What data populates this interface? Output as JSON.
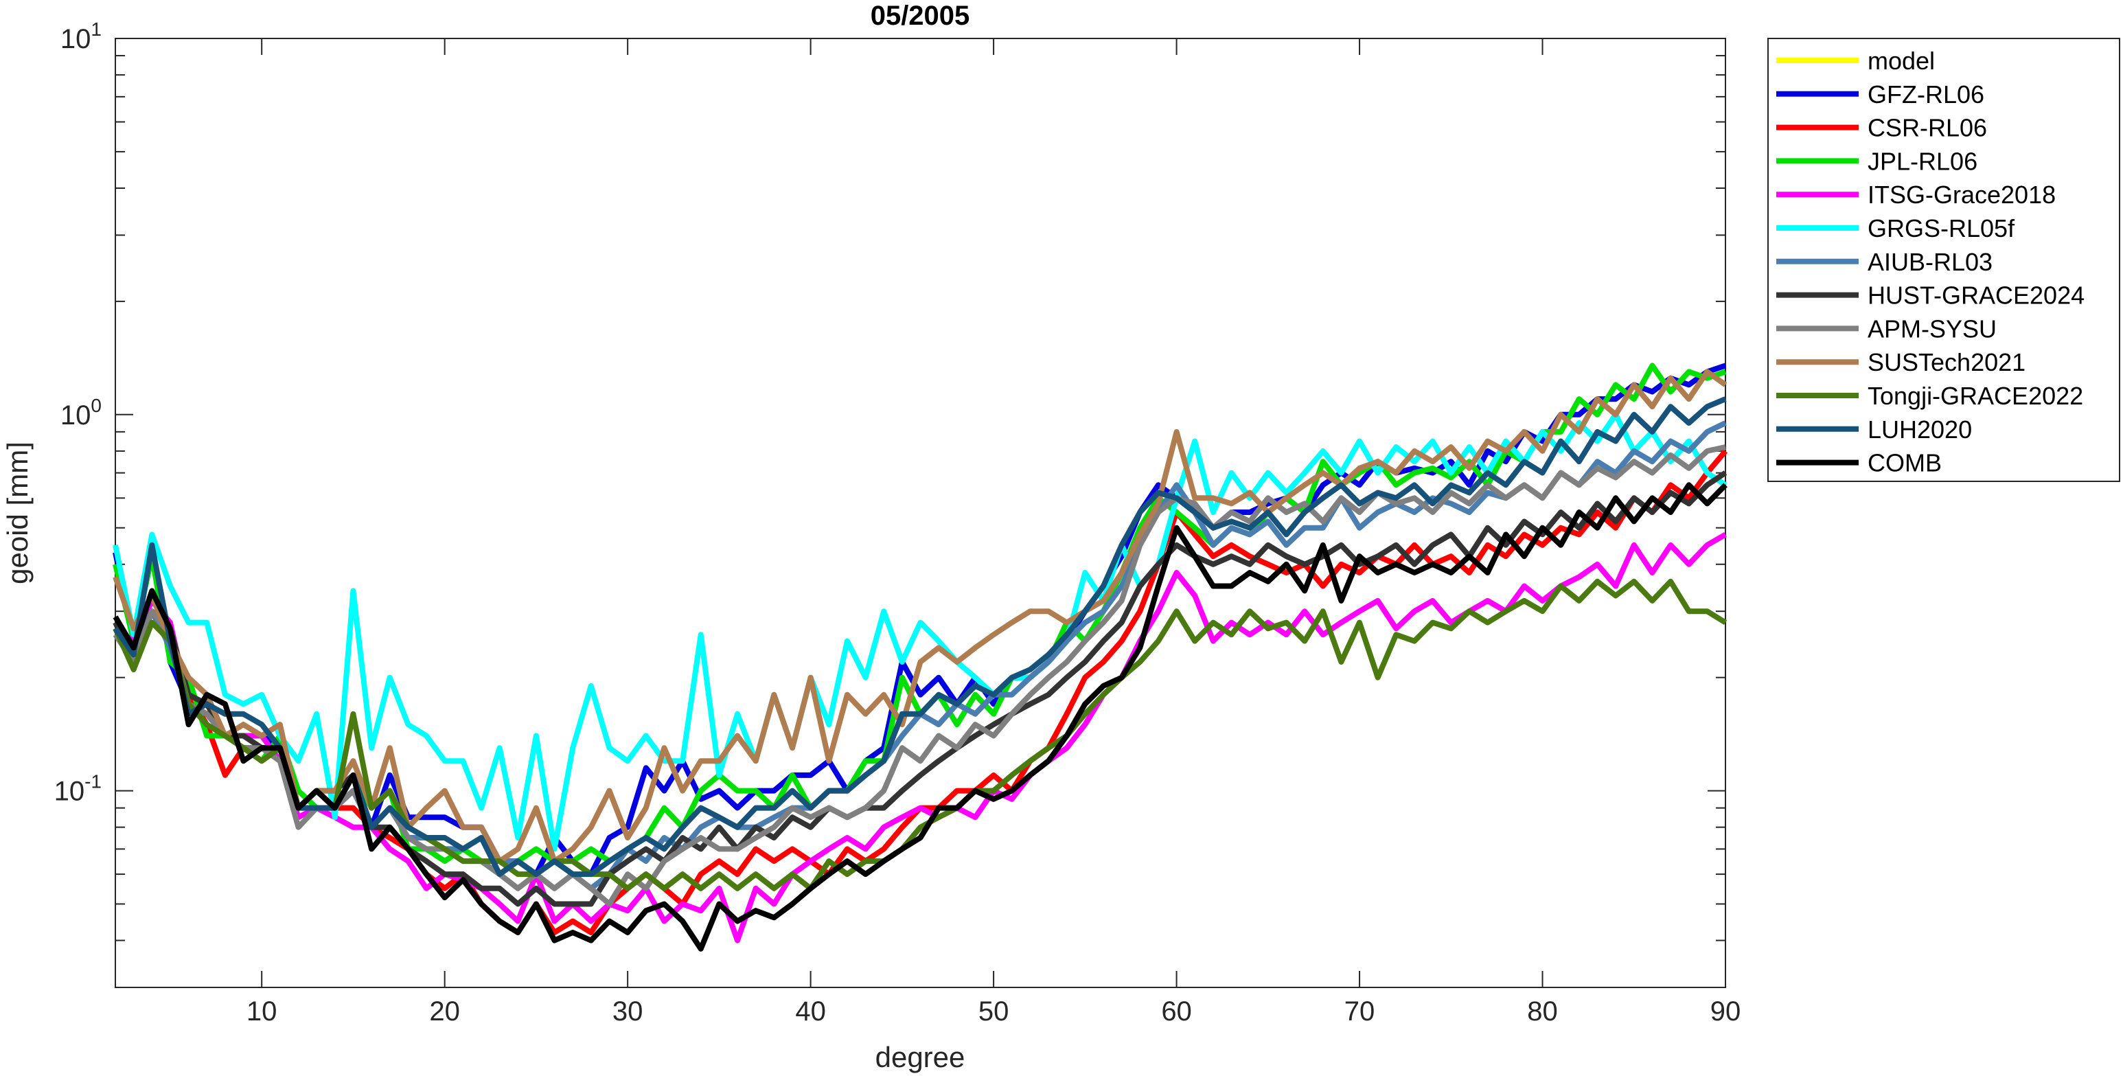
{
  "chart_data": {
    "type": "line",
    "title": "05/2005",
    "xlabel": "degree",
    "ylabel": "geoid [mm]",
    "xlim": [
      2,
      90
    ],
    "ylim": [
      0.03,
      10
    ],
    "yscale": "log",
    "xticks": [
      "10",
      "20",
      "30",
      "40",
      "50",
      "60",
      "70",
      "80",
      "90"
    ],
    "yticks": [
      {
        "value": 10,
        "base": "10",
        "exp": "1"
      },
      {
        "value": 1,
        "base": "10",
        "exp": "0"
      },
      {
        "value": 0.1,
        "base": "10",
        "exp": "-1"
      }
    ],
    "grid": false,
    "legend_position": "outside-top-right",
    "series": [
      {
        "name": "model",
        "color": "#FFFF00",
        "x": [],
        "y": []
      },
      {
        "name": "GFZ-RL06",
        "color": "#0000E0",
        "x_start": 2,
        "y": [
          0.43,
          0.25,
          0.45,
          0.22,
          0.17,
          0.16,
          0.14,
          0.14,
          0.14,
          0.13,
          0.09,
          0.1,
          0.09,
          0.1,
          0.08,
          0.11,
          0.085,
          0.085,
          0.085,
          0.08,
          0.08,
          0.065,
          0.065,
          0.06,
          0.075,
          0.065,
          0.06,
          0.075,
          0.08,
          0.115,
          0.1,
          0.12,
          0.095,
          0.1,
          0.09,
          0.1,
          0.1,
          0.11,
          0.11,
          0.12,
          0.1,
          0.12,
          0.13,
          0.22,
          0.18,
          0.2,
          0.17,
          0.2,
          0.17,
          0.2,
          0.2,
          0.22,
          0.25,
          0.3,
          0.35,
          0.42,
          0.55,
          0.65,
          0.6,
          0.55,
          0.5,
          0.55,
          0.55,
          0.58,
          0.6,
          0.55,
          0.65,
          0.7,
          0.65,
          0.75,
          0.7,
          0.72,
          0.7,
          0.75,
          0.65,
          0.8,
          0.75,
          0.9,
          0.85,
          1.0,
          1.0,
          1.1,
          1.1,
          1.2,
          1.15,
          1.25,
          1.2,
          1.3,
          1.35
        ]
      },
      {
        "name": "CSR-RL06",
        "color": "#FF0000",
        "x_start": 2,
        "y": [
          0.27,
          0.22,
          0.3,
          0.25,
          0.18,
          0.15,
          0.11,
          0.13,
          0.13,
          0.12,
          0.09,
          0.1,
          0.09,
          0.09,
          0.08,
          0.075,
          0.07,
          0.06,
          0.055,
          0.06,
          0.05,
          0.045,
          0.042,
          0.05,
          0.042,
          0.045,
          0.042,
          0.05,
          0.055,
          0.06,
          0.055,
          0.05,
          0.06,
          0.065,
          0.06,
          0.07,
          0.065,
          0.07,
          0.065,
          0.06,
          0.07,
          0.065,
          0.07,
          0.08,
          0.09,
          0.09,
          0.1,
          0.1,
          0.11,
          0.1,
          0.12,
          0.13,
          0.16,
          0.2,
          0.22,
          0.25,
          0.3,
          0.4,
          0.55,
          0.48,
          0.42,
          0.45,
          0.42,
          0.4,
          0.38,
          0.4,
          0.35,
          0.4,
          0.38,
          0.42,
          0.4,
          0.45,
          0.4,
          0.42,
          0.38,
          0.45,
          0.42,
          0.48,
          0.45,
          0.5,
          0.48,
          0.55,
          0.5,
          0.6,
          0.55,
          0.65,
          0.6,
          0.7,
          0.8
        ]
      },
      {
        "name": "JPL-RL06",
        "color": "#00E000",
        "x_start": 2,
        "y": [
          0.4,
          0.25,
          0.42,
          0.22,
          0.2,
          0.14,
          0.14,
          0.13,
          0.12,
          0.14,
          0.1,
          0.09,
          0.09,
          0.11,
          0.09,
          0.1,
          0.07,
          0.07,
          0.065,
          0.07,
          0.065,
          0.06,
          0.065,
          0.07,
          0.065,
          0.065,
          0.07,
          0.065,
          0.07,
          0.075,
          0.09,
          0.08,
          0.1,
          0.11,
          0.1,
          0.1,
          0.09,
          0.11,
          0.09,
          0.1,
          0.1,
          0.12,
          0.12,
          0.2,
          0.16,
          0.18,
          0.15,
          0.18,
          0.16,
          0.2,
          0.2,
          0.22,
          0.28,
          0.25,
          0.3,
          0.38,
          0.5,
          0.6,
          0.55,
          0.5,
          0.45,
          0.5,
          0.48,
          0.55,
          0.6,
          0.55,
          0.75,
          0.65,
          0.7,
          0.75,
          0.65,
          0.7,
          0.72,
          0.68,
          0.75,
          0.65,
          0.8,
          0.75,
          0.9,
          0.9,
          1.1,
          1.0,
          1.2,
          1.1,
          1.35,
          1.15,
          1.3,
          1.25,
          1.3
        ]
      },
      {
        "name": "ITSG-Grace2018",
        "color": "#FF00FF",
        "x_start": 2,
        "y": [
          0.27,
          0.25,
          0.32,
          0.28,
          0.17,
          0.15,
          0.14,
          0.14,
          0.14,
          0.12,
          0.085,
          0.09,
          0.085,
          0.08,
          0.08,
          0.07,
          0.065,
          0.055,
          0.06,
          0.058,
          0.055,
          0.05,
          0.045,
          0.06,
          0.045,
          0.05,
          0.045,
          0.05,
          0.048,
          0.055,
          0.045,
          0.05,
          0.048,
          0.055,
          0.04,
          0.055,
          0.05,
          0.06,
          0.065,
          0.07,
          0.075,
          0.07,
          0.08,
          0.085,
          0.09,
          0.085,
          0.09,
          0.085,
          0.1,
          0.095,
          0.11,
          0.12,
          0.13,
          0.15,
          0.18,
          0.2,
          0.25,
          0.3,
          0.38,
          0.33,
          0.25,
          0.28,
          0.26,
          0.28,
          0.26,
          0.3,
          0.26,
          0.28,
          0.3,
          0.32,
          0.27,
          0.3,
          0.32,
          0.28,
          0.3,
          0.32,
          0.3,
          0.35,
          0.32,
          0.35,
          0.37,
          0.4,
          0.35,
          0.45,
          0.38,
          0.45,
          0.4,
          0.45,
          0.48
        ]
      },
      {
        "name": "GRGS-RL05f",
        "color": "#00FFFF",
        "x_start": 2,
        "y": [
          0.45,
          0.26,
          0.48,
          0.35,
          0.28,
          0.28,
          0.18,
          0.17,
          0.18,
          0.14,
          0.12,
          0.16,
          0.085,
          0.34,
          0.13,
          0.2,
          0.15,
          0.14,
          0.12,
          0.12,
          0.09,
          0.13,
          0.075,
          0.14,
          0.07,
          0.13,
          0.19,
          0.13,
          0.12,
          0.14,
          0.12,
          0.12,
          0.26,
          0.11,
          0.16,
          0.12,
          0.18,
          0.13,
          0.2,
          0.15,
          0.25,
          0.2,
          0.3,
          0.22,
          0.28,
          0.25,
          0.22,
          0.2,
          0.18,
          0.2,
          0.2,
          0.22,
          0.25,
          0.38,
          0.32,
          0.45,
          0.35,
          0.4,
          0.6,
          0.85,
          0.55,
          0.7,
          0.6,
          0.7,
          0.62,
          0.7,
          0.8,
          0.7,
          0.85,
          0.7,
          0.82,
          0.75,
          0.85,
          0.7,
          0.82,
          0.7,
          0.85,
          0.75,
          0.9,
          0.8,
          0.95,
          0.85,
          1.0,
          0.8,
          0.9,
          0.75,
          0.85,
          0.7,
          0.65
        ]
      },
      {
        "name": "AIUB-RL03",
        "color": "#4A7DB0",
        "x_start": 2,
        "y": [
          0.27,
          0.24,
          0.3,
          0.24,
          0.17,
          0.16,
          0.14,
          0.13,
          0.13,
          0.13,
          0.09,
          0.09,
          0.09,
          0.11,
          0.08,
          0.09,
          0.075,
          0.075,
          0.07,
          0.07,
          0.075,
          0.065,
          0.065,
          0.06,
          0.065,
          0.06,
          0.055,
          0.06,
          0.07,
          0.065,
          0.075,
          0.07,
          0.08,
          0.085,
          0.08,
          0.08,
          0.085,
          0.09,
          0.09,
          0.1,
          0.1,
          0.11,
          0.12,
          0.14,
          0.16,
          0.15,
          0.17,
          0.16,
          0.18,
          0.18,
          0.2,
          0.22,
          0.25,
          0.28,
          0.3,
          0.35,
          0.45,
          0.55,
          0.65,
          0.55,
          0.45,
          0.5,
          0.48,
          0.52,
          0.45,
          0.5,
          0.5,
          0.6,
          0.5,
          0.55,
          0.58,
          0.55,
          0.6,
          0.58,
          0.55,
          0.62,
          0.6,
          0.65,
          0.6,
          0.7,
          0.65,
          0.75,
          0.7,
          0.8,
          0.75,
          0.85,
          0.8,
          0.9,
          0.95
        ]
      },
      {
        "name": "HUST-GRACE2024",
        "color": "#333333",
        "x_start": 2,
        "y": [
          0.28,
          0.22,
          0.3,
          0.27,
          0.18,
          0.17,
          0.14,
          0.14,
          0.13,
          0.13,
          0.09,
          0.1,
          0.1,
          0.11,
          0.08,
          0.08,
          0.07,
          0.065,
          0.06,
          0.06,
          0.055,
          0.055,
          0.05,
          0.055,
          0.05,
          0.05,
          0.05,
          0.06,
          0.065,
          0.07,
          0.065,
          0.075,
          0.07,
          0.08,
          0.07,
          0.08,
          0.075,
          0.085,
          0.08,
          0.09,
          0.085,
          0.09,
          0.09,
          0.1,
          0.11,
          0.12,
          0.13,
          0.14,
          0.15,
          0.16,
          0.17,
          0.18,
          0.2,
          0.22,
          0.25,
          0.28,
          0.35,
          0.4,
          0.45,
          0.42,
          0.4,
          0.42,
          0.4,
          0.45,
          0.42,
          0.4,
          0.42,
          0.45,
          0.4,
          0.42,
          0.45,
          0.4,
          0.45,
          0.48,
          0.42,
          0.5,
          0.45,
          0.52,
          0.48,
          0.55,
          0.5,
          0.58,
          0.52,
          0.6,
          0.55,
          0.62,
          0.58,
          0.65,
          0.7
        ]
      },
      {
        "name": "APM-SYSU",
        "color": "#808080",
        "x_start": 2,
        "y": [
          0.26,
          0.22,
          0.3,
          0.26,
          0.17,
          0.16,
          0.14,
          0.13,
          0.13,
          0.12,
          0.08,
          0.09,
          0.09,
          0.1,
          0.08,
          0.09,
          0.075,
          0.07,
          0.07,
          0.065,
          0.065,
          0.06,
          0.055,
          0.06,
          0.055,
          0.06,
          0.055,
          0.05,
          0.06,
          0.055,
          0.065,
          0.07,
          0.075,
          0.07,
          0.07,
          0.075,
          0.08,
          0.09,
          0.085,
          0.09,
          0.085,
          0.09,
          0.1,
          0.13,
          0.12,
          0.14,
          0.13,
          0.15,
          0.14,
          0.16,
          0.18,
          0.2,
          0.22,
          0.25,
          0.28,
          0.32,
          0.45,
          0.55,
          0.6,
          0.58,
          0.5,
          0.55,
          0.52,
          0.6,
          0.55,
          0.58,
          0.52,
          0.6,
          0.55,
          0.62,
          0.58,
          0.6,
          0.55,
          0.62,
          0.58,
          0.65,
          0.6,
          0.65,
          0.6,
          0.7,
          0.65,
          0.72,
          0.68,
          0.75,
          0.7,
          0.78,
          0.72,
          0.8,
          0.82
        ]
      },
      {
        "name": "SUSTech2021",
        "color": "#B07D50",
        "x_start": 2,
        "y": [
          0.37,
          0.27,
          0.33,
          0.25,
          0.2,
          0.18,
          0.14,
          0.15,
          0.14,
          0.15,
          0.09,
          0.1,
          0.1,
          0.12,
          0.09,
          0.13,
          0.08,
          0.09,
          0.1,
          0.08,
          0.08,
          0.065,
          0.07,
          0.09,
          0.065,
          0.07,
          0.08,
          0.1,
          0.075,
          0.09,
          0.13,
          0.1,
          0.12,
          0.12,
          0.14,
          0.12,
          0.18,
          0.13,
          0.2,
          0.12,
          0.18,
          0.16,
          0.18,
          0.15,
          0.22,
          0.24,
          0.22,
          0.24,
          0.26,
          0.28,
          0.3,
          0.3,
          0.28,
          0.3,
          0.32,
          0.38,
          0.48,
          0.58,
          0.9,
          0.6,
          0.6,
          0.58,
          0.62,
          0.55,
          0.6,
          0.65,
          0.7,
          0.65,
          0.72,
          0.75,
          0.7,
          0.8,
          0.75,
          0.82,
          0.72,
          0.85,
          0.8,
          0.9,
          0.8,
          1.0,
          0.9,
          1.1,
          1.0,
          1.2,
          1.05,
          1.25,
          1.1,
          1.3,
          1.2
        ]
      },
      {
        "name": "Tongji-GRACE2022",
        "color": "#4A7A10",
        "x_start": 2,
        "y": [
          0.27,
          0.21,
          0.28,
          0.25,
          0.17,
          0.15,
          0.14,
          0.13,
          0.12,
          0.13,
          0.09,
          0.1,
          0.09,
          0.16,
          0.09,
          0.1,
          0.08,
          0.075,
          0.07,
          0.065,
          0.065,
          0.065,
          0.06,
          0.06,
          0.065,
          0.065,
          0.06,
          0.06,
          0.055,
          0.06,
          0.055,
          0.06,
          0.055,
          0.06,
          0.055,
          0.06,
          0.055,
          0.06,
          0.055,
          0.065,
          0.06,
          0.065,
          0.065,
          0.07,
          0.08,
          0.085,
          0.09,
          0.1,
          0.1,
          0.11,
          0.12,
          0.13,
          0.14,
          0.16,
          0.18,
          0.2,
          0.22,
          0.25,
          0.3,
          0.25,
          0.28,
          0.26,
          0.3,
          0.27,
          0.28,
          0.25,
          0.3,
          0.22,
          0.28,
          0.2,
          0.26,
          0.25,
          0.28,
          0.27,
          0.3,
          0.28,
          0.3,
          0.32,
          0.3,
          0.35,
          0.32,
          0.36,
          0.33,
          0.36,
          0.32,
          0.36,
          0.3,
          0.3,
          0.28
        ]
      },
      {
        "name": "LUH2020",
        "color": "#16527A",
        "x_start": 2,
        "y": [
          0.27,
          0.23,
          0.45,
          0.25,
          0.16,
          0.17,
          0.16,
          0.16,
          0.15,
          0.13,
          0.09,
          0.09,
          0.09,
          0.11,
          0.08,
          0.09,
          0.08,
          0.075,
          0.075,
          0.07,
          0.075,
          0.06,
          0.065,
          0.06,
          0.065,
          0.06,
          0.06,
          0.065,
          0.07,
          0.075,
          0.07,
          0.08,
          0.09,
          0.085,
          0.08,
          0.09,
          0.09,
          0.1,
          0.09,
          0.1,
          0.1,
          0.11,
          0.12,
          0.16,
          0.16,
          0.18,
          0.17,
          0.19,
          0.18,
          0.2,
          0.21,
          0.23,
          0.26,
          0.3,
          0.35,
          0.45,
          0.55,
          0.62,
          0.6,
          0.55,
          0.5,
          0.52,
          0.5,
          0.55,
          0.48,
          0.55,
          0.6,
          0.65,
          0.58,
          0.62,
          0.6,
          0.65,
          0.58,
          0.65,
          0.62,
          0.7,
          0.65,
          0.75,
          0.7,
          0.85,
          0.75,
          0.9,
          0.85,
          1.0,
          0.9,
          1.05,
          0.95,
          1.05,
          1.1
        ]
      },
      {
        "name": "COMB",
        "color": "#000000",
        "x_start": 2,
        "y": [
          0.29,
          0.24,
          0.34,
          0.27,
          0.15,
          0.18,
          0.17,
          0.12,
          0.13,
          0.13,
          0.09,
          0.1,
          0.09,
          0.11,
          0.07,
          0.08,
          0.07,
          0.06,
          0.052,
          0.058,
          0.05,
          0.045,
          0.042,
          0.05,
          0.04,
          0.042,
          0.04,
          0.045,
          0.042,
          0.048,
          0.05,
          0.045,
          0.038,
          0.05,
          0.045,
          0.048,
          0.046,
          0.05,
          0.055,
          0.06,
          0.065,
          0.06,
          0.065,
          0.07,
          0.075,
          0.09,
          0.09,
          0.1,
          0.095,
          0.1,
          0.11,
          0.12,
          0.14,
          0.17,
          0.19,
          0.2,
          0.24,
          0.35,
          0.5,
          0.42,
          0.35,
          0.35,
          0.38,
          0.36,
          0.4,
          0.34,
          0.45,
          0.32,
          0.42,
          0.38,
          0.4,
          0.38,
          0.4,
          0.38,
          0.42,
          0.38,
          0.48,
          0.42,
          0.5,
          0.45,
          0.55,
          0.5,
          0.6,
          0.52,
          0.6,
          0.55,
          0.65,
          0.58,
          0.65
        ]
      }
    ]
  }
}
